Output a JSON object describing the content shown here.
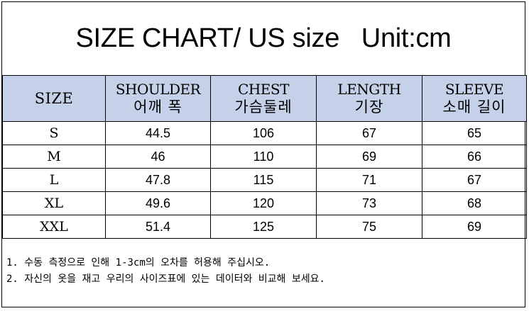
{
  "title": "SIZE CHART/ US size   Unit:cm",
  "table": {
    "size_header": "SIZE",
    "columns": [
      {
        "en": "SHOULDER",
        "ko": "어깨 폭"
      },
      {
        "en": "CHEST",
        "ko": "가슴둘레"
      },
      {
        "en": "LENGTH",
        "ko": "기장"
      },
      {
        "en": "SLEEVE",
        "ko": "소매 길이"
      }
    ],
    "rows": [
      {
        "size": "S",
        "values": [
          "44.5",
          "106",
          "67",
          "65"
        ]
      },
      {
        "size": "M",
        "values": [
          "46",
          "110",
          "69",
          "66"
        ]
      },
      {
        "size": "L",
        "values": [
          "47.8",
          "115",
          "71",
          "67"
        ]
      },
      {
        "size": "XL",
        "values": [
          "49.6",
          "120",
          "73",
          "68"
        ]
      },
      {
        "size": "XXL",
        "values": [
          "51.4",
          "125",
          "75",
          "69"
        ]
      }
    ]
  },
  "notes": [
    "1. 수동 측정으로 인해 1-3cm의 오차를 허용해 주십시오.",
    "2. 자신의 옷을 재고 우리의 사이즈표에 있는 데이터와 비교해 보세요."
  ],
  "colors": {
    "header_bg": "#c5d1e8",
    "border": "#000000"
  }
}
